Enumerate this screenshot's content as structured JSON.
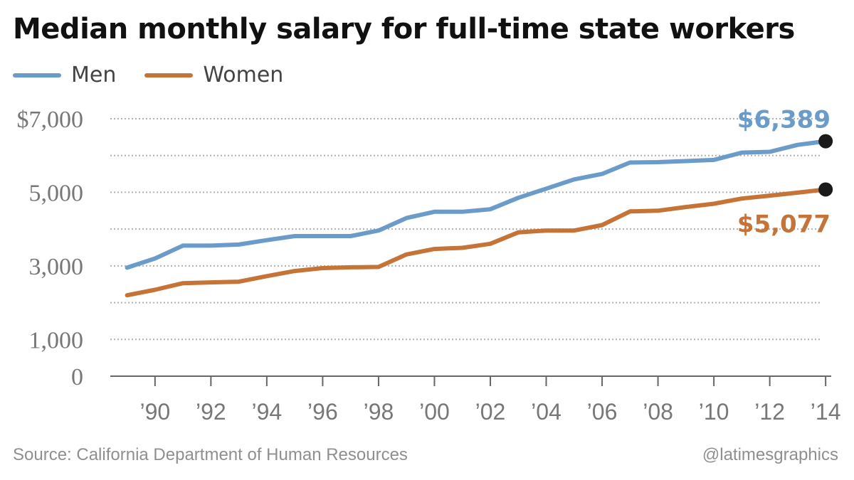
{
  "colors": {
    "men": "#6b9bc9",
    "women": "#c67338",
    "grid": "#b0b0b0",
    "axis": "#666666",
    "tick_text": "#777777",
    "endpoint": "#1a1a1a"
  },
  "footer": {
    "source": "Source: California Department of Human Resources",
    "credit": "@latimesgraphics"
  },
  "chart_data": {
    "type": "line",
    "title": "Median monthly salary for full-time state workers",
    "xlabel": "",
    "ylabel": "",
    "x": [
      1989,
      1990,
      1991,
      1992,
      1993,
      1994,
      1995,
      1996,
      1997,
      1998,
      1999,
      2000,
      2001,
      2002,
      2003,
      2004,
      2005,
      2006,
      2007,
      2008,
      2009,
      2010,
      2011,
      2012,
      2013,
      2014
    ],
    "xlim": [
      1988.4,
      2014.2
    ],
    "ylim": [
      0,
      7000
    ],
    "grid": true,
    "gridlines": [
      1000,
      2000,
      3000,
      4000,
      5000,
      6000,
      7000
    ],
    "y_ticks": [
      {
        "value": 0,
        "label": "0"
      },
      {
        "value": 1000,
        "label": "1,000"
      },
      {
        "value": 3000,
        "label": "3,000"
      },
      {
        "value": 5000,
        "label": "5,000"
      },
      {
        "value": 7000,
        "label": "$7,000"
      }
    ],
    "x_ticks": [
      {
        "value": 1990,
        "label": "’90"
      },
      {
        "value": 1992,
        "label": "’92"
      },
      {
        "value": 1994,
        "label": "’94"
      },
      {
        "value": 1996,
        "label": "’96"
      },
      {
        "value": 1998,
        "label": "’98"
      },
      {
        "value": 2000,
        "label": "’00"
      },
      {
        "value": 2002,
        "label": "’02"
      },
      {
        "value": 2004,
        "label": "’04"
      },
      {
        "value": 2006,
        "label": "’06"
      },
      {
        "value": 2008,
        "label": "’08"
      },
      {
        "value": 2010,
        "label": "’10"
      },
      {
        "value": 2012,
        "label": "’12"
      },
      {
        "value": 2014,
        "label": "’14"
      }
    ],
    "legend_position": "top-left",
    "series": [
      {
        "name": "Men",
        "key": "men",
        "values": [
          2950,
          3200,
          3550,
          3550,
          3580,
          3700,
          3810,
          3810,
          3810,
          3960,
          4300,
          4470,
          4470,
          4540,
          4850,
          5100,
          5350,
          5500,
          5810,
          5820,
          5850,
          5880,
          6080,
          6100,
          6290,
          6389
        ],
        "end_label": "$6,389"
      },
      {
        "name": "Women",
        "key": "women",
        "values": [
          2200,
          2350,
          2530,
          2550,
          2570,
          2720,
          2860,
          2940,
          2960,
          2970,
          3310,
          3460,
          3490,
          3600,
          3910,
          3960,
          3960,
          4110,
          4480,
          4500,
          4600,
          4690,
          4830,
          4910,
          4990,
          5077
        ],
        "end_label": "$5,077"
      }
    ]
  }
}
